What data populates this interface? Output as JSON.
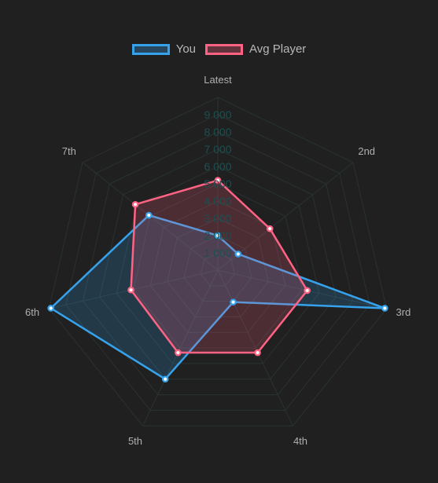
{
  "chart_data": {
    "type": "radar",
    "categories": [
      "Latest",
      "2nd",
      "3rd",
      "4th",
      "5th",
      "6th",
      "7th"
    ],
    "r_ticks": [
      "1 000",
      "2 000",
      "3 000",
      "4 000",
      "5 000",
      "6 000",
      "7 000",
      "8 000",
      "9 000"
    ],
    "rlim": [
      0,
      10000
    ],
    "grid": true,
    "legend_position": "top",
    "series": [
      {
        "name": "You",
        "values": [
          2000,
          1500,
          9900,
          2050,
          7000,
          9900,
          5100
        ],
        "color": "#36a2eb",
        "fill": "rgba(54,162,235,0.2)"
      },
      {
        "name": "Avg Player",
        "values": [
          5200,
          3850,
          5300,
          5300,
          5300,
          5150,
          6100
        ],
        "color": "#ff6384",
        "fill": "rgba(255,99,132,0.2)"
      }
    ]
  },
  "colors": {
    "background": "#202020",
    "grid": "#283332",
    "tick_text": "#1b5051",
    "label_text": "#b0b0b0"
  }
}
